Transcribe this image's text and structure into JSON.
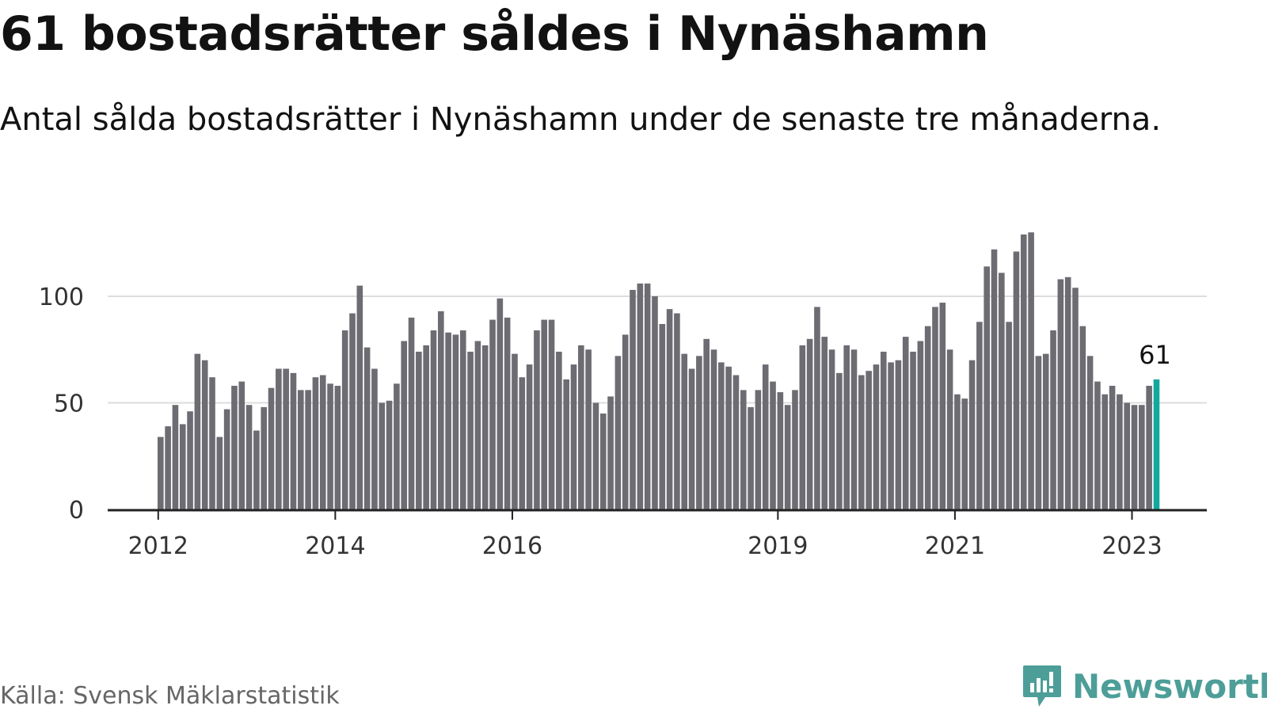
{
  "title": "61 bostadsrätter såldes i Nynäshamn",
  "subtitle": "Antal sålda bostadsrätter i Nynäshamn under de senaste tre månaderna.",
  "source": "Källa: Svensk Mäklarstatistik",
  "brand": "Newsworthy",
  "chart_data": {
    "type": "bar",
    "title": "61 bostadsrätter såldes i Nynäshamn",
    "subtitle": "Antal sålda bostadsrätter i Nynäshamn under de senaste tre månaderna.",
    "xlabel": "",
    "ylabel": "",
    "ylim": [
      0,
      135
    ],
    "yticks": [
      0,
      50,
      100
    ],
    "grid": true,
    "x_start": "2012-01",
    "x_tick_labels": [
      {
        "label": "2012",
        "index": 0
      },
      {
        "label": "2014",
        "index": 24
      },
      {
        "label": "2016",
        "index": 48
      },
      {
        "label": "2019",
        "index": 84
      },
      {
        "label": "2021",
        "index": 108
      },
      {
        "label": "2023",
        "index": 132
      }
    ],
    "values": [
      34,
      39,
      49,
      40,
      46,
      73,
      70,
      62,
      34,
      47,
      58,
      60,
      49,
      37,
      48,
      57,
      66,
      66,
      64,
      56,
      56,
      62,
      63,
      59,
      58,
      84,
      92,
      105,
      76,
      66,
      50,
      51,
      59,
      79,
      90,
      74,
      77,
      84,
      93,
      83,
      82,
      84,
      74,
      79,
      77,
      89,
      99,
      90,
      73,
      62,
      68,
      84,
      89,
      89,
      74,
      61,
      68,
      77,
      75,
      50,
      45,
      53,
      72,
      82,
      103,
      106,
      106,
      100,
      87,
      94,
      92,
      73,
      66,
      72,
      80,
      75,
      69,
      67,
      63,
      56,
      48,
      56,
      68,
      60,
      55,
      49,
      56,
      77,
      80,
      95,
      81,
      75,
      64,
      77,
      75,
      63,
      65,
      68,
      74,
      69,
      70,
      81,
      74,
      79,
      86,
      95,
      97,
      75,
      54,
      52,
      70,
      88,
      114,
      122,
      111,
      88,
      121,
      129,
      130,
      72,
      73,
      84,
      108,
      109,
      104,
      86,
      72,
      60,
      54,
      58,
      54,
      50,
      49,
      49,
      58,
      61
    ],
    "highlight_index": 135,
    "highlight_label": "61",
    "bar_color": "#6c6c72",
    "highlight_color": "#13a89e",
    "gridline_color": "#dddddd",
    "axis_color": "#222222"
  }
}
